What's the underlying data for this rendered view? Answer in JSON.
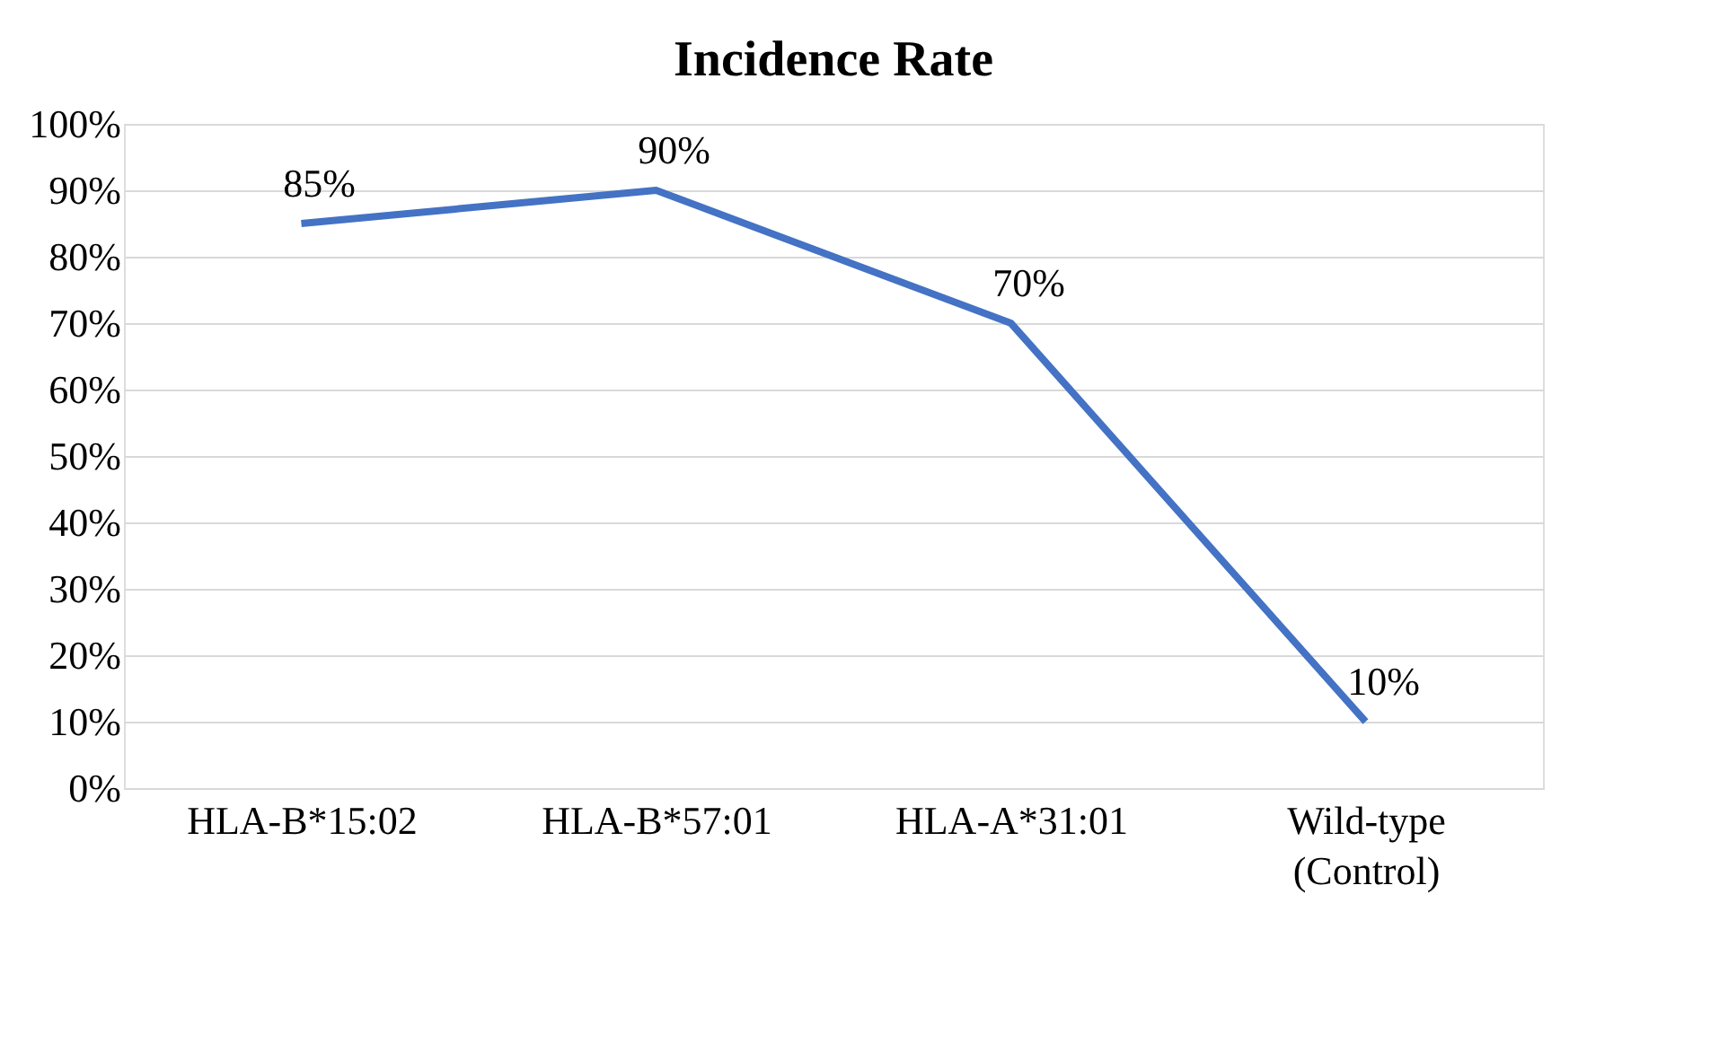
{
  "chart_data": {
    "type": "line",
    "title": "Incidence Rate",
    "categories": [
      "HLA-B*15:02",
      "HLA-B*57:01",
      "HLA-A*31:01",
      "Wild-type (Control)"
    ],
    "series": [
      {
        "color": "#4472c4",
        "values": [
          85,
          90,
          70,
          10
        ],
        "value_labels": [
          "85%",
          "90%",
          "70%",
          "10%"
        ]
      }
    ],
    "ylim": [
      0,
      100
    ],
    "yticks": [
      {
        "value": 0,
        "label": "0%"
      },
      {
        "value": 10,
        "label": "10%"
      },
      {
        "value": 20,
        "label": "20%"
      },
      {
        "value": 30,
        "label": "30%"
      },
      {
        "value": 40,
        "label": "40%"
      },
      {
        "value": 50,
        "label": "50%"
      },
      {
        "value": 60,
        "label": "60%"
      },
      {
        "value": 70,
        "label": "70%"
      },
      {
        "value": 80,
        "label": "80%"
      },
      {
        "value": 90,
        "label": "90%"
      },
      {
        "value": 100,
        "label": "100%"
      }
    ],
    "grid": "y",
    "marker": "none",
    "line_style": "solid",
    "legend": false
  }
}
